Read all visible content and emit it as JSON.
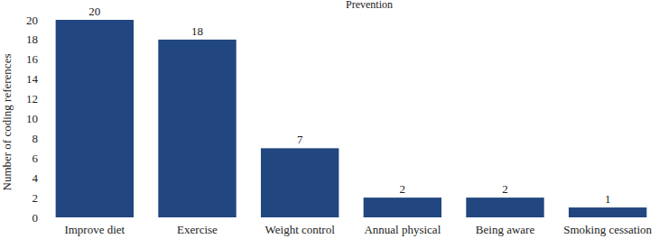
{
  "chart_data": {
    "type": "bar",
    "title": "Prevention",
    "categories": [
      "Improve diet",
      "Exercise",
      "Weight control",
      "Annual physical",
      "Being aware",
      "Smoking cessation"
    ],
    "values": [
      20,
      18,
      7,
      2,
      2,
      1
    ],
    "color": "#22467f",
    "y_label": "Number of coding references",
    "ylim": [
      0,
      20
    ],
    "yticks": [
      0,
      2,
      4,
      6,
      8,
      10,
      12,
      14,
      16,
      18,
      20
    ],
    "grid": false,
    "data_labels": true
  }
}
